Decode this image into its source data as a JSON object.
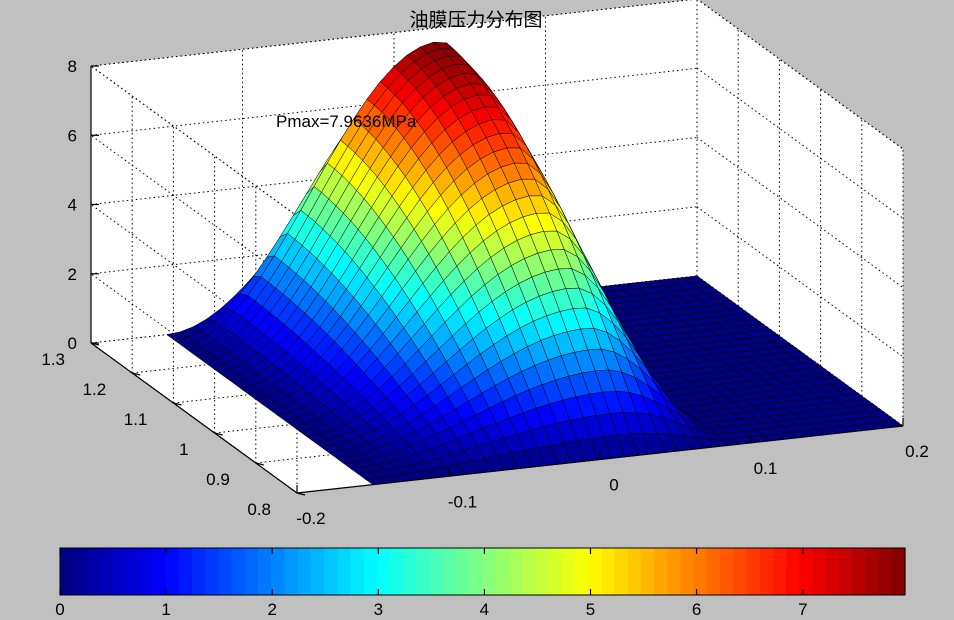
{
  "chart_data": {
    "type": "surface",
    "title": "油膜压力分布图",
    "annotation": "Pmax=7.9636MPa",
    "colormap": "jet",
    "grid": true,
    "x_axis": {
      "range": [
        -0.2,
        0.2
      ],
      "ticks": [
        -0.2,
        -0.1,
        0,
        0.1,
        0.2
      ],
      "tick_labels": [
        "-0.2",
        "-0.1",
        "0",
        "0.1",
        "0.2"
      ]
    },
    "y_axis": {
      "range": [
        0.8,
        1.3
      ],
      "ticks": [
        0.8,
        0.9,
        1.0,
        1.1,
        1.2,
        1.3
      ],
      "tick_labels": [
        "0.8",
        "0.9",
        "1",
        "1.1",
        "1.2",
        "1.3"
      ]
    },
    "z_axis": {
      "range": [
        0,
        8
      ],
      "ticks": [
        0,
        2,
        4,
        6,
        8
      ],
      "tick_labels": [
        "0",
        "2",
        "4",
        "6",
        "8"
      ]
    },
    "colorbar": {
      "location": "bottom",
      "range": [
        0,
        7.9636
      ],
      "ticks": [
        0,
        1,
        2,
        3,
        4,
        5,
        6,
        7
      ],
      "tick_labels": [
        "0",
        "1",
        "2",
        "3",
        "4",
        "5",
        "6",
        "7"
      ]
    },
    "z_max": 7.9636
  }
}
